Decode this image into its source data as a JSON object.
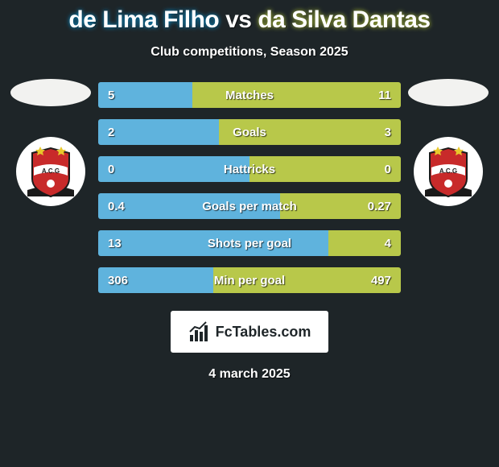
{
  "title": {
    "player1": "de Lima Filho",
    "vs": "vs",
    "player2": "da Silva Dantas"
  },
  "subtitle": "Club competitions, Season 2025",
  "colors": {
    "player1_bar": "#5fb3dd",
    "player2_bar": "#b8c84a",
    "player1_ellipse": "#f2f2f0",
    "player2_ellipse": "#f2f2f0",
    "bg": "#1e2528"
  },
  "bars": [
    {
      "label": "Matches",
      "left_val": "5",
      "right_val": "11",
      "left_pct": 31,
      "right_pct": 69
    },
    {
      "label": "Goals",
      "left_val": "2",
      "right_val": "3",
      "left_pct": 40,
      "right_pct": 60
    },
    {
      "label": "Hattricks",
      "left_val": "0",
      "right_val": "0",
      "left_pct": 50,
      "right_pct": 50
    },
    {
      "label": "Goals per match",
      "left_val": "0.4",
      "right_val": "0.27",
      "left_pct": 60,
      "right_pct": 40
    },
    {
      "label": "Shots per goal",
      "left_val": "13",
      "right_val": "4",
      "left_pct": 76,
      "right_pct": 24
    },
    {
      "label": "Min per goal",
      "left_val": "306",
      "right_val": "497",
      "left_pct": 38,
      "right_pct": 62
    }
  ],
  "watermark": "FcTables.com",
  "date": "4 march 2025",
  "crest": {
    "shield_fill": "#c82a2a",
    "shield_stroke": "#1a1a1a",
    "banner_fill": "#ffffff",
    "star_fill": "#e8c82c",
    "acg_text": "A.C.G"
  }
}
